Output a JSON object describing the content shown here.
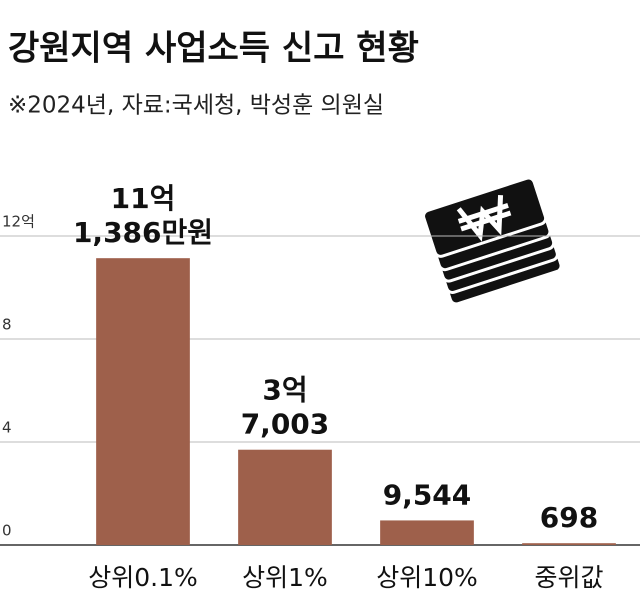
{
  "chart_data": {
    "type": "bar",
    "title": "강원지역 사업소득 신고 현황",
    "subtitle": "※2024년, 자료:국세청, 박성훈 의원실",
    "categories": [
      "상위0.1%",
      "상위1%",
      "상위10%",
      "중위값"
    ],
    "values": [
      11.1386,
      3.7003,
      0.9544,
      0.0698
    ],
    "value_labels": [
      [
        "11억",
        "1,386만원"
      ],
      [
        "3억",
        "7,003"
      ],
      [
        "9,544"
      ],
      [
        "698"
      ]
    ],
    "color": "#9e604b",
    "ylim": [
      0,
      12
    ],
    "yticks": [
      0,
      4,
      8,
      {
        "value": 12,
        "label": "12억"
      }
    ],
    "grid": true
  }
}
